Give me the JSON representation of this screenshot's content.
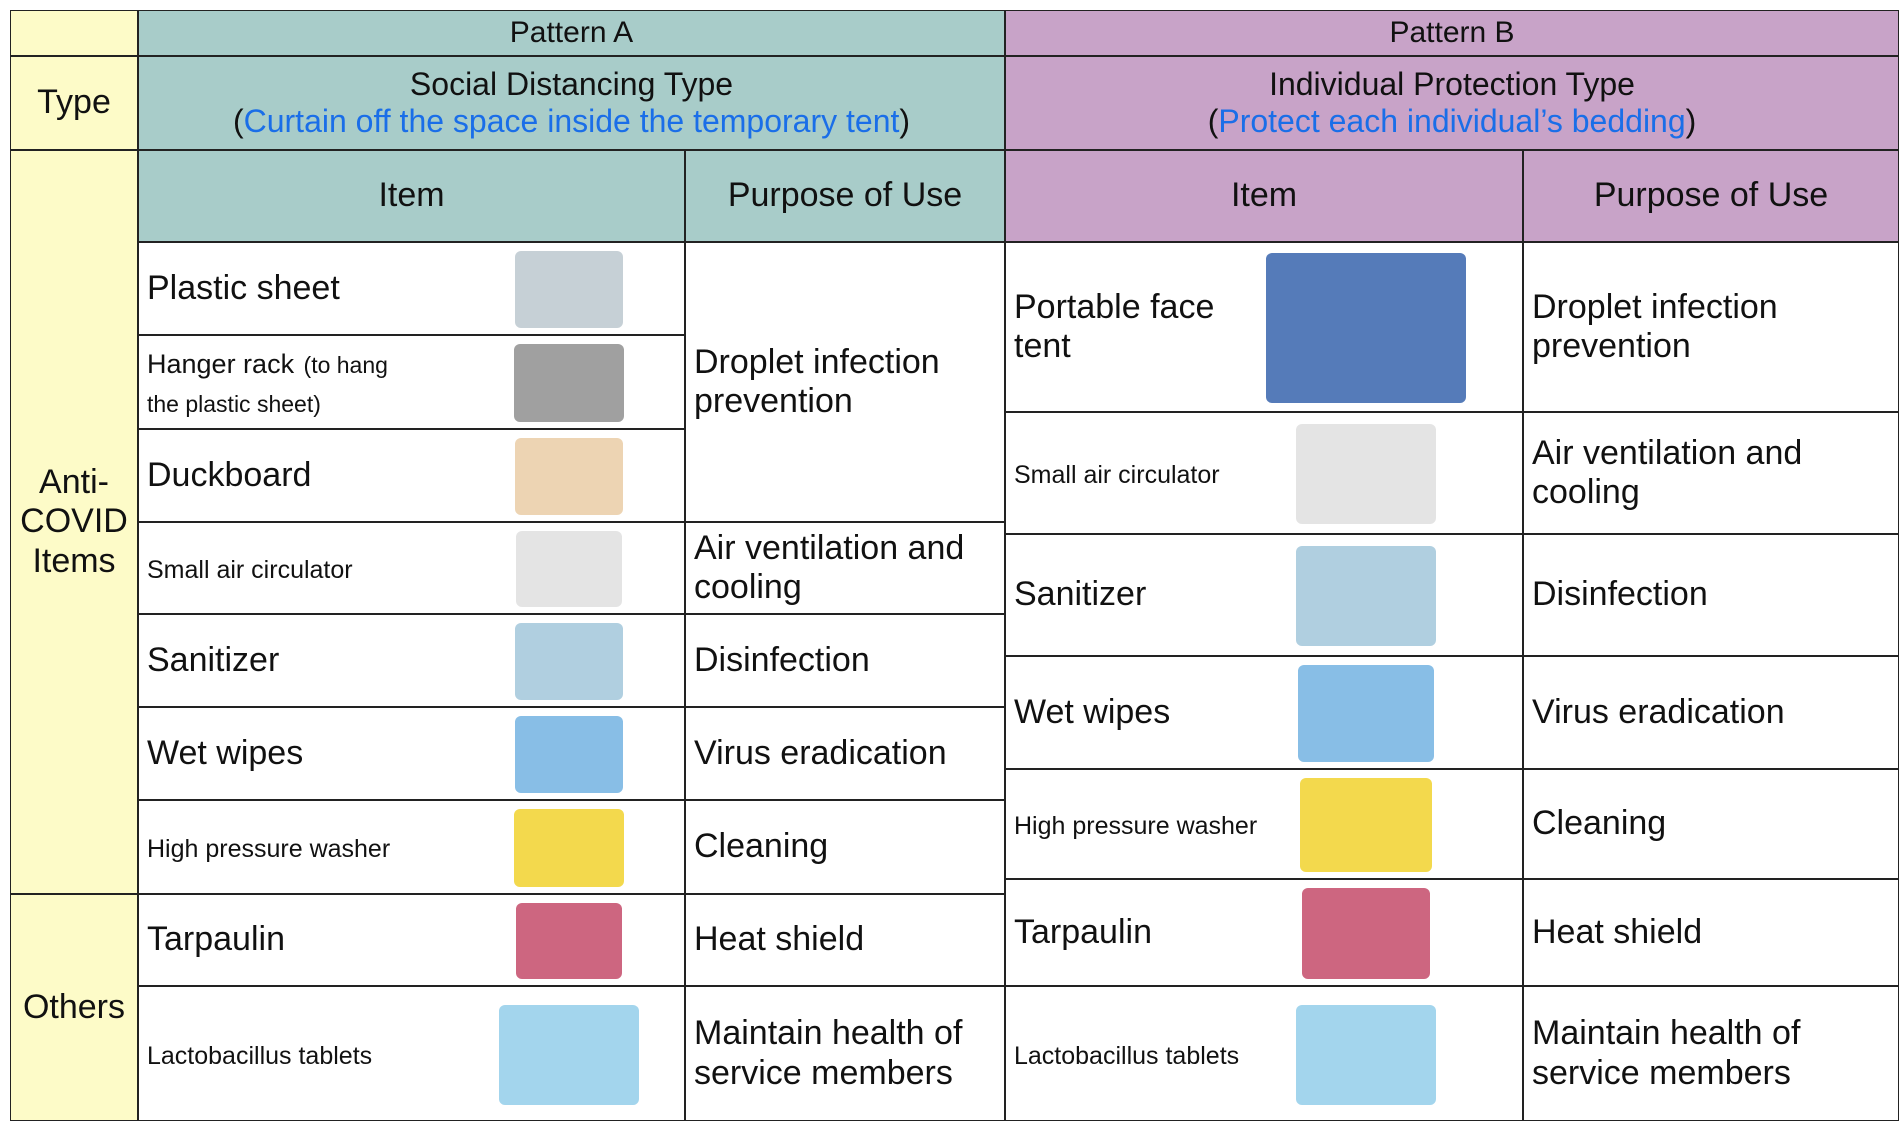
{
  "type_label": "Type",
  "row_groups": [
    "Anti-COVID Items",
    "Others"
  ],
  "patterns": [
    {
      "title": "Pattern A",
      "type": "Social Distancing Type",
      "description": {
        "open": "(",
        "text": "Curtain off the space inside the temporary tent",
        "close": ")"
      },
      "columns": [
        "Item",
        "Purpose of Use"
      ],
      "items": [
        {
          "name": "Plastic sheet"
        },
        {
          "name": "Hanger rack",
          "note": "(to hang the plastic sheet)"
        },
        {
          "name": "Duckboard"
        },
        {
          "name": "Small air circulator"
        },
        {
          "name": "Sanitizer"
        },
        {
          "name": "Wet wipes"
        },
        {
          "name": "High pressure washer"
        },
        {
          "name": "Tarpaulin"
        },
        {
          "name": "Lactobacillus tablets"
        }
      ],
      "purposes": [
        "Droplet infection prevention",
        "Air ventilation and cooling",
        "Disinfection",
        "Virus eradication",
        "Cleaning",
        "Heat shield",
        "Maintain health of service members"
      ]
    },
    {
      "title": "Pattern B",
      "type": "Individual Protection Type",
      "description": {
        "open": "(",
        "text": "Protect each individual’s bedding",
        "close": ")"
      },
      "columns": [
        "Item",
        "Purpose of Use"
      ],
      "items": [
        {
          "name": "Portable face tent"
        },
        {
          "name": "Small air circulator"
        },
        {
          "name": "Sanitizer"
        },
        {
          "name": "Wet wipes"
        },
        {
          "name": "High pressure washer"
        },
        {
          "name": "Tarpaulin"
        },
        {
          "name": "Lactobacillus tablets"
        }
      ],
      "purposes": [
        "Droplet infection prevention",
        "Air ventilation and cooling",
        "Disinfection",
        "Virus eradication",
        "Cleaning",
        "Heat shield",
        "Maintain health of service members"
      ]
    }
  ]
}
